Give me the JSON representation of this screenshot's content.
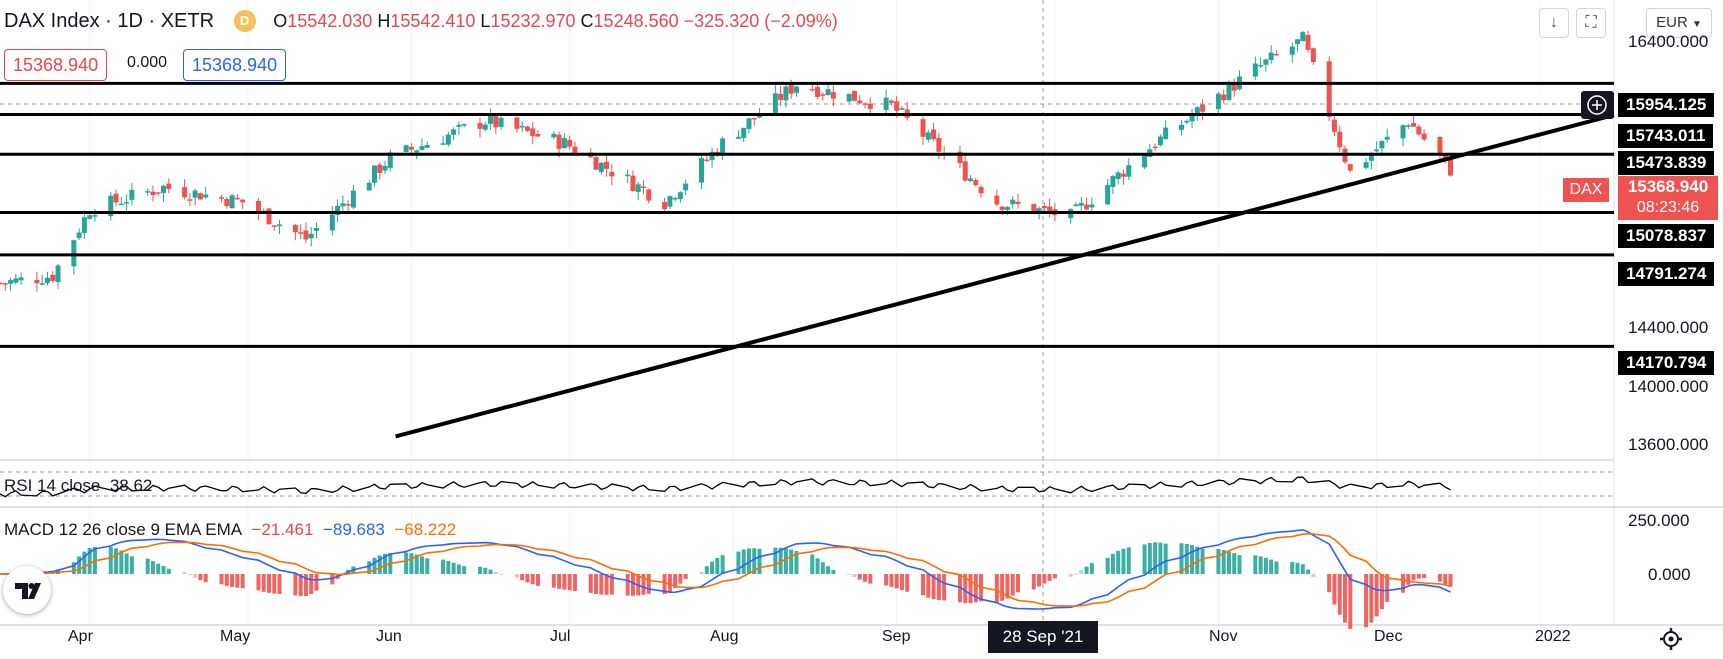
{
  "header": {
    "symbol": "DAX Index · 1D · XETR",
    "badge": "D",
    "o_label": "O",
    "o": "15542.030",
    "h_label": "H",
    "h": "15542.410",
    "l_label": "L",
    "l": "15232.970",
    "c_label": "C",
    "c": "15248.560",
    "change": "−325.320 (−2.09%)"
  },
  "bid": "15368.940",
  "spread": "0.000",
  "ask": "15368.940",
  "currency": "EUR",
  "toolbar": {
    "download_icon": "arrow-down-icon",
    "expand_icon": "expand-icon"
  },
  "price_axis": {
    "labels": [
      "16400.000",
      "14400.000",
      "14000.000",
      "13600.000"
    ]
  },
  "price_tags": [
    "15954.125",
    "15743.011",
    "15473.839",
    "15078.837",
    "14791.274",
    "14170.794"
  ],
  "current": {
    "name": "DAX",
    "price": "15368.940",
    "countdown": "08:23:46"
  },
  "rsi": {
    "label": "RSI 14 close",
    "value": "38.62"
  },
  "macd": {
    "label": "MACD 12 26 close 9 EMA EMA",
    "hist": "−21.461",
    "macd": "−89.683",
    "signal": "−68.222",
    "axis": [
      "250.000",
      "0.000"
    ]
  },
  "x_axis": {
    "labels": [
      "Apr",
      "May",
      "Jun",
      "Jul",
      "Aug",
      "Sep",
      "Nov",
      "Dec",
      "2022"
    ],
    "highlight": "28 Sep '21"
  },
  "colors": {
    "up": "#26a69a",
    "down": "#ef5350",
    "macd": "#2962ff",
    "signal": "#ff6d00",
    "levels": "#000000"
  },
  "chart_data": {
    "type": "candlestick",
    "title": "DAX Index · 1D · XETR",
    "y_range": [
      13400,
      16520
    ],
    "x_range": [
      "2021-03-15",
      "2022-01-15"
    ],
    "horizontal_levels": [
      15954.125,
      15743.011,
      15473.839,
      15078.837,
      14791.274,
      14170.794
    ],
    "trendline": {
      "from": {
        "date": "2021-05-29",
        "price": 13560
      },
      "to": {
        "date": "2022-01-15",
        "price": 15740
      }
    },
    "ohlc_last": {
      "open": 15542.03,
      "high": 15542.41,
      "low": 15232.97,
      "close": 15248.56
    },
    "close_approx": [
      [
        "2021-03-15",
        14600
      ],
      [
        "2021-03-25",
        14650
      ],
      [
        "2021-04-01",
        15100
      ],
      [
        "2021-04-15",
        15250
      ],
      [
        "2021-04-30",
        15150
      ],
      [
        "2021-05-12",
        14900
      ],
      [
        "2021-05-28",
        15450
      ],
      [
        "2021-06-15",
        15700
      ],
      [
        "2021-06-30",
        15550
      ],
      [
        "2021-07-19",
        15150
      ],
      [
        "2021-07-30",
        15550
      ],
      [
        "2021-08-13",
        15950
      ],
      [
        "2021-08-31",
        15800
      ],
      [
        "2021-09-20",
        15150
      ],
      [
        "2021-10-04",
        15050
      ],
      [
        "2021-10-20",
        15550
      ],
      [
        "2021-11-08",
        16050
      ],
      [
        "2021-11-17",
        16250
      ],
      [
        "2021-11-26",
        15350
      ],
      [
        "2021-12-07",
        15700
      ],
      [
        "2021-12-15",
        15369
      ]
    ]
  }
}
